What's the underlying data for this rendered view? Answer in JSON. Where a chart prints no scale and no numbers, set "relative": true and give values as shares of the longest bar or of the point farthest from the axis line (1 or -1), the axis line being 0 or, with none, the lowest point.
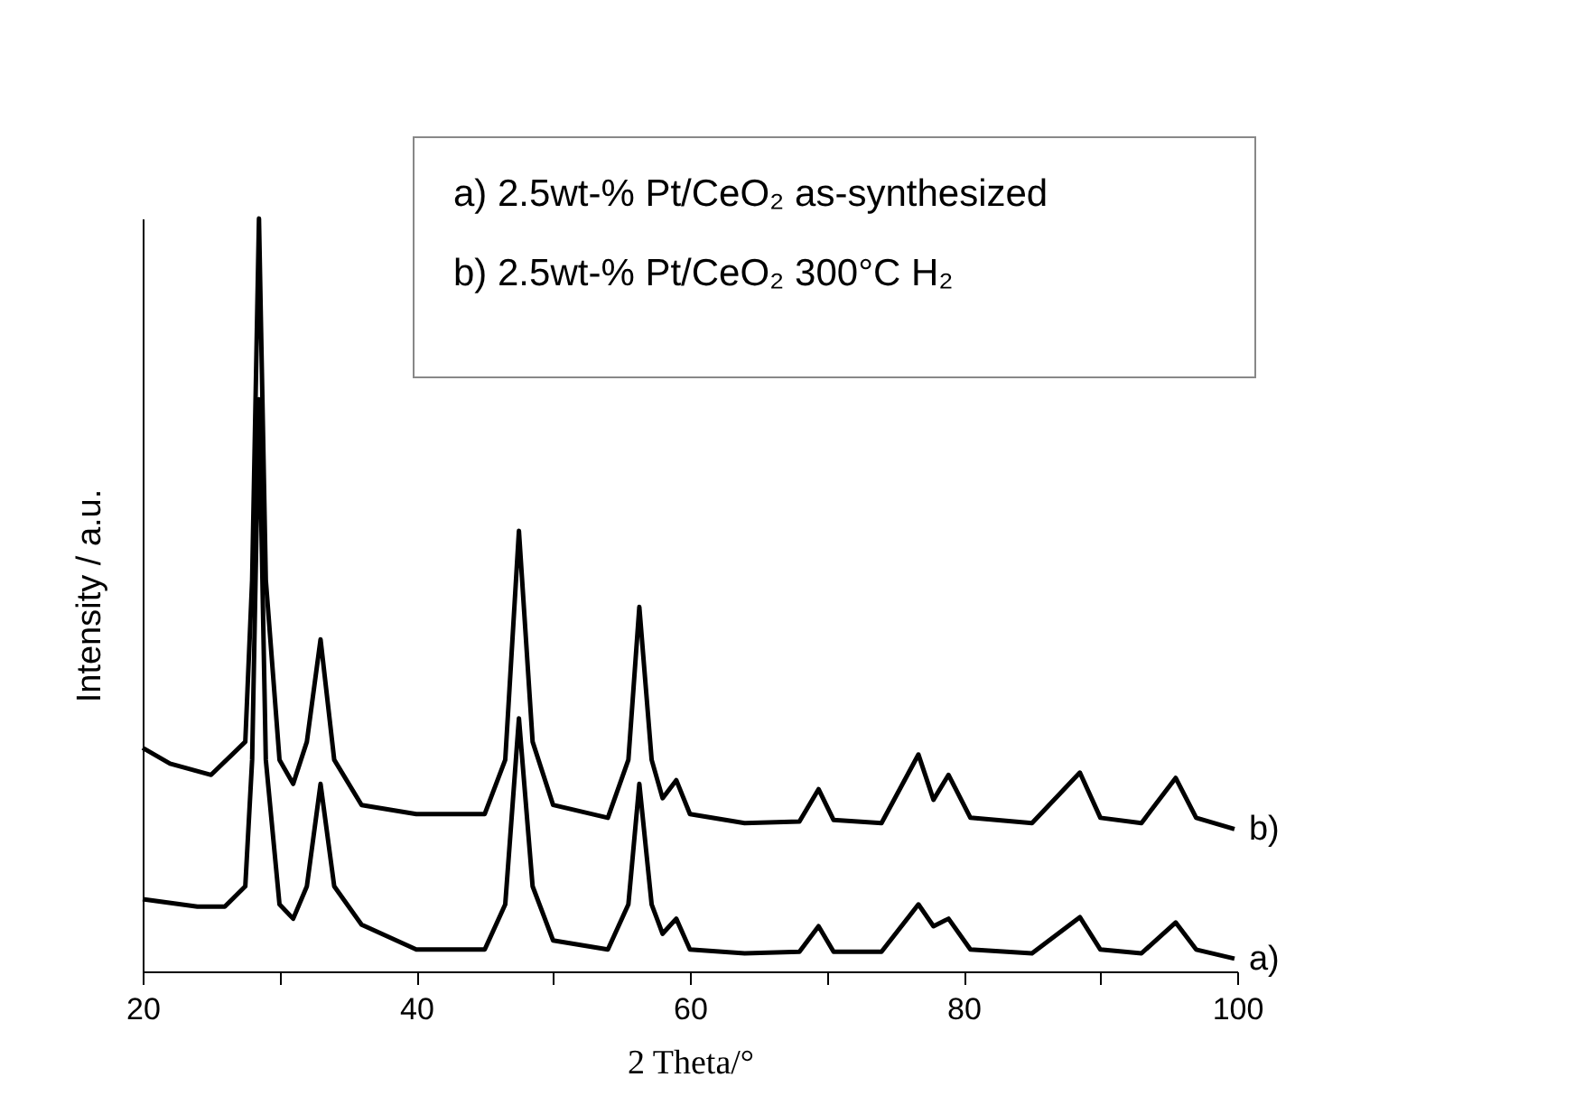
{
  "chart_data": {
    "type": "line",
    "relative": true,
    "xlabel": "2 Theta/°",
    "ylabel": "Intensity / a.u.",
    "xlim": [
      20,
      100
    ],
    "xticks": [
      20,
      {
        "value": 30,
        "label": null
      },
      40,
      {
        "value": 50,
        "label": null
      },
      60,
      {
        "value": 70,
        "label": null
      },
      80,
      {
        "value": 90,
        "label": null
      },
      100
    ],
    "annotations": [
      "a) 2.5wt-% Pt/CeO₂ as-synthesized",
      "b) 2.5wt-% Pt/CeO₂ 300°C H₂"
    ],
    "line_style": "solid",
    "x": [
      20,
      24,
      26,
      27.5,
      28,
      28.5,
      29,
      30,
      31,
      32,
      33,
      34,
      36,
      40,
      45,
      46.5,
      47.5,
      48.5,
      50,
      54,
      55.5,
      56.3,
      57.2,
      58,
      59,
      60,
      64,
      68,
      69.4,
      70.5,
      74,
      76.7,
      77.8,
      78.9,
      80.5,
      85,
      88.5,
      90,
      93,
      95.5,
      97,
      99.8
    ],
    "series": [
      {
        "name": "a)",
        "color": "#000000",
        "values": [
          0.096,
          0.086,
          0.086,
          0.113,
          0.281,
          0.76,
          0.281,
          0.089,
          0.07,
          0.113,
          0.249,
          0.113,
          0.062,
          0.029,
          0.029,
          0.089,
          0.336,
          0.113,
          0.041,
          0.029,
          0.089,
          0.249,
          0.089,
          0.05,
          0.07,
          0.029,
          0.024,
          0.026,
          0.06,
          0.026,
          0.026,
          0.089,
          0.06,
          0.07,
          0.029,
          0.024,
          0.072,
          0.029,
          0.024,
          0.065,
          0.029,
          0.017
        ]
      },
      {
        "name": "b)",
        "color": "#000000",
        "x": [
          20,
          22,
          25,
          27.5,
          28,
          28.5,
          29,
          30,
          31,
          32,
          33,
          34,
          36,
          40,
          45,
          46.5,
          47.5,
          48.5,
          50,
          54,
          55.5,
          56.3,
          57.2,
          58,
          59,
          60,
          64,
          68,
          69.4,
          70.5,
          74,
          76.7,
          77.8,
          78.9,
          80.5,
          85,
          88.5,
          90,
          93,
          95.5,
          97,
          99.8
        ],
        "values": [
          0.297,
          0.276,
          0.261,
          0.305,
          0.52,
          1,
          0.52,
          0.281,
          0.249,
          0.305,
          0.441,
          0.281,
          0.221,
          0.209,
          0.209,
          0.281,
          0.585,
          0.305,
          0.221,
          0.204,
          0.281,
          0.484,
          0.281,
          0.23,
          0.254,
          0.209,
          0.197,
          0.199,
          0.242,
          0.201,
          0.197,
          0.288,
          0.228,
          0.261,
          0.204,
          0.197,
          0.264,
          0.204,
          0.197,
          0.257,
          0.204,
          0.189
        ]
      }
    ]
  }
}
